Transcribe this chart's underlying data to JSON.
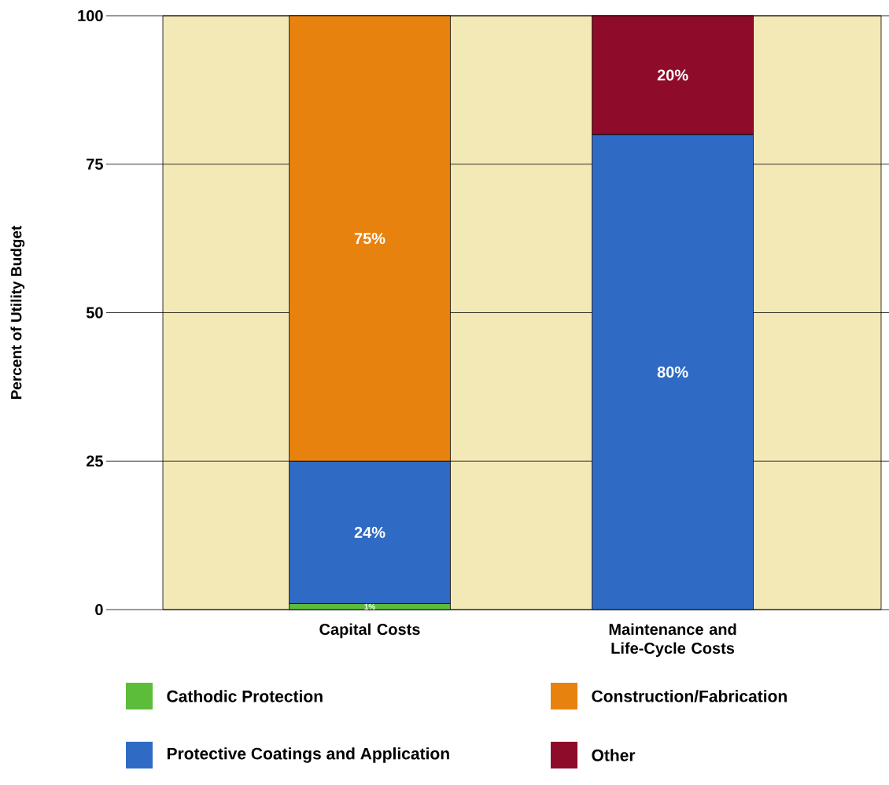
{
  "chart_data": {
    "type": "bar",
    "stacked": true,
    "ylabel": "Percent of Utility Budget",
    "categories": [
      "Capital Costs",
      "Maintenance and Life-Cycle Costs"
    ],
    "series": [
      {
        "name": "Cathodic Protection",
        "color": "#5cbd3a",
        "values": [
          1,
          null
        ],
        "value_labels": [
          "1%",
          null
        ]
      },
      {
        "name": "Protective Coatings and Application",
        "color": "#2f6bc4",
        "values": [
          24,
          80
        ],
        "value_labels": [
          "24%",
          "80%"
        ]
      },
      {
        "name": "Construction/Fabrication",
        "color": "#e8820f",
        "values": [
          75,
          null
        ],
        "value_labels": [
          "75%",
          null
        ]
      },
      {
        "name": "Other",
        "color": "#8e0b2a",
        "values": [
          null,
          20
        ],
        "value_labels": [
          null,
          "20%"
        ]
      }
    ],
    "ylim": [
      0,
      100
    ],
    "yticks": [
      0,
      25,
      50,
      75,
      100
    ],
    "grid": "y",
    "legend": "bottom"
  }
}
